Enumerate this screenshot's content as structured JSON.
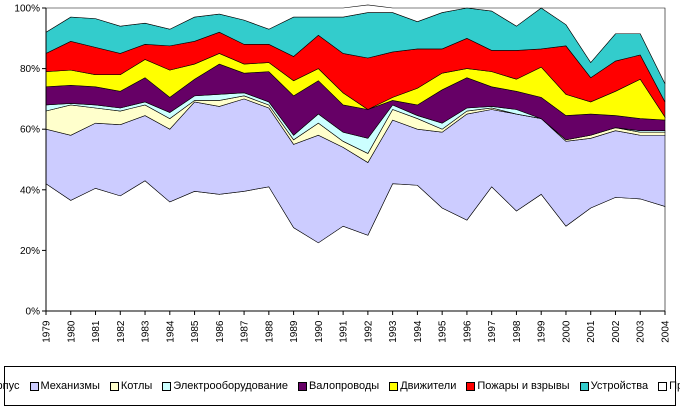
{
  "chart_data": {
    "type": "area",
    "stacked": "percent",
    "x": [
      "1979",
      "1980",
      "1981",
      "1982",
      "1983",
      "1984",
      "1985",
      "1986",
      "1987",
      "1988",
      "1989",
      "1990",
      "1991",
      "1992",
      "1993",
      "1994",
      "1995",
      "1996",
      "1997",
      "1998",
      "1999",
      "2000",
      "2001",
      "2002",
      "2003",
      "2004"
    ],
    "ylim": [
      0,
      100
    ],
    "y_ticks": [
      "0%",
      "20%",
      "40%",
      "60%",
      "80%",
      "100%"
    ],
    "series": [
      {
        "name": "Корпус",
        "color": "#ffffff",
        "values": [
          42,
          36.5,
          40.5,
          38,
          43,
          36,
          39.5,
          38.5,
          39.5,
          41,
          27.5,
          22.5,
          28,
          25,
          42,
          41.5,
          34,
          30,
          41,
          33,
          38.5,
          28,
          34,
          37.5,
          37,
          34.5
        ]
      },
      {
        "name": "Механизмы",
        "color": "#ccccff",
        "values": [
          18,
          21.5,
          21.5,
          23.5,
          21.5,
          24,
          29.5,
          29,
          30.5,
          26,
          27.5,
          35.5,
          26,
          24,
          21,
          18.5,
          25,
          35,
          25.5,
          32,
          25,
          28,
          23,
          22,
          21,
          23.5
        ]
      },
      {
        "name": "Котлы",
        "color": "#ffffcc",
        "values": [
          6,
          10,
          5,
          4.5,
          3.5,
          3.5,
          0.5,
          2,
          1,
          1,
          1.5,
          4,
          2,
          3,
          3.5,
          3.5,
          1,
          1,
          0.5,
          0,
          0,
          0.5,
          1,
          1,
          1,
          1
        ]
      },
      {
        "name": "Электрооборудование",
        "color": "#ccffff",
        "values": [
          2,
          0.5,
          1,
          1,
          1,
          2,
          1.5,
          2,
          1,
          1,
          1.5,
          3,
          3,
          5,
          1.5,
          1,
          2,
          1,
          0.5,
          1.5,
          0,
          0,
          0,
          0,
          0.5,
          0.5
        ]
      },
      {
        "name": "Валопроводы",
        "color": "#660066",
        "values": [
          6,
          6,
          6,
          5.5,
          8,
          5,
          5.5,
          10,
          6.5,
          10,
          13,
          11,
          9,
          9.5,
          1.5,
          3.5,
          11,
          10,
          6.5,
          6,
          7,
          8,
          7,
          4,
          4,
          3.5
        ]
      },
      {
        "name": "Движители",
        "color": "#ffff00",
        "values": [
          5,
          5,
          4,
          5.5,
          6,
          9,
          5,
          3.5,
          3,
          3,
          5,
          4,
          4,
          0,
          1,
          5.5,
          5.5,
          3,
          5,
          4,
          10,
          7,
          4,
          8,
          13,
          1
        ]
      },
      {
        "name": "Пожары и взрывы",
        "color": "#ff0000",
        "values": [
          6,
          9.5,
          9,
          7,
          5,
          8,
          7.5,
          7,
          6.5,
          6,
          8,
          11,
          13,
          17,
          15,
          13,
          8,
          10,
          7,
          9.5,
          6,
          16,
          8,
          10,
          8,
          5
        ]
      },
      {
        "name": "Устройства",
        "color": "#33cccc",
        "values": [
          7,
          8,
          9.5,
          9,
          7,
          5.5,
          8,
          6,
          8,
          5,
          13,
          6,
          12,
          15,
          13,
          9,
          12,
          10,
          13,
          8,
          13.5,
          7,
          5,
          9,
          7,
          6
        ]
      },
      {
        "name": "Прочее",
        "color": "#ffffff",
        "values": [
          8,
          3,
          3.5,
          6,
          5,
          7,
          3,
          2,
          4,
          7,
          3,
          3,
          3,
          2.5,
          1.5,
          4.5,
          1.5,
          0,
          1,
          6,
          0,
          5.5,
          18,
          8.5,
          8.5,
          25
        ]
      }
    ]
  }
}
